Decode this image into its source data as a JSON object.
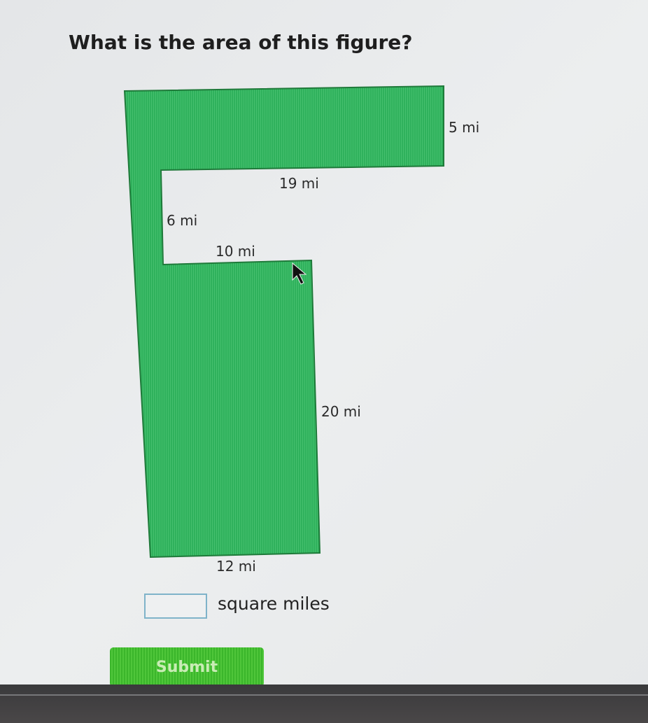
{
  "question": "What is the area of this figure?",
  "figure": {
    "fill_color": "#2fb15c",
    "labels": {
      "top_height": "5 mi",
      "top_width": "19 mi",
      "notch_height": "6 mi",
      "notch_width": "10 mi",
      "right_height": "20 mi",
      "bottom_width": "12 mi"
    }
  },
  "answer": {
    "value": "",
    "unit_label": "square miles"
  },
  "submit_label": "Submit",
  "accent_color": "#3bb62b"
}
